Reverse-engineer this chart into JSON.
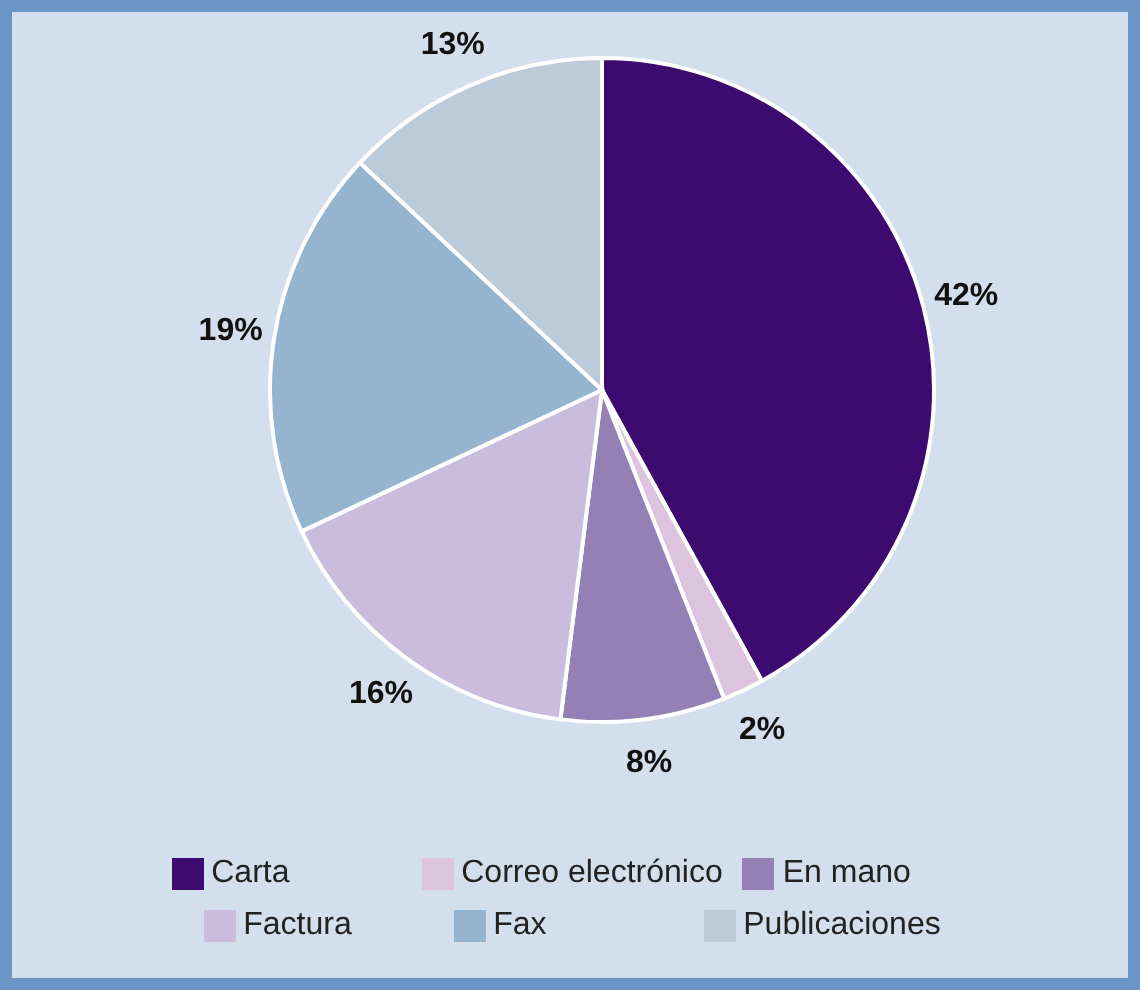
{
  "chart_data": {
    "type": "pie",
    "categories": [
      "Carta",
      "Correo electrónico",
      "En mano",
      "Factura",
      "Fax",
      "Publicaciones"
    ],
    "values": [
      42,
      2,
      8,
      16,
      19,
      13
    ],
    "value_labels": [
      "42%",
      "2%",
      "8%",
      "16%",
      "19%",
      "13%"
    ],
    "colors": [
      "#3d0a70",
      "#dcc4df",
      "#9480b5",
      "#c9bcdc",
      "#94b4cf",
      "#bccbd9"
    ],
    "legend": "bottom"
  }
}
